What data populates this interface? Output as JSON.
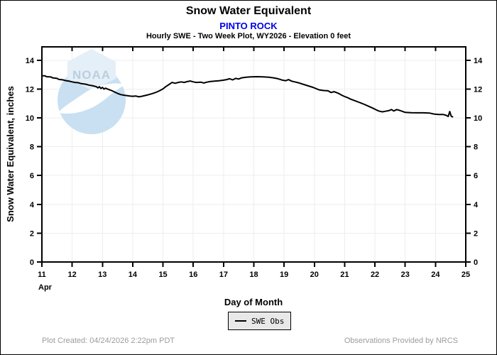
{
  "header": {
    "title": "Snow Water Equivalent",
    "station": "PINTO ROCK",
    "subtitle": "Hourly SWE - Two Week Plot, WY2026 - Elevation 0 feet"
  },
  "colors": {
    "station_text": "#0000e6",
    "line": "#000000",
    "grid": "#ededed",
    "frame": "#000000",
    "legend_bg": "#e8e8e8",
    "footer_text": "#9c9c9c",
    "logo_circle": "#c8e0f1",
    "logo_crystal": "#edf4fa",
    "logo_text": "#bccedf"
  },
  "watermark": {
    "text": "NOAA"
  },
  "footer": {
    "created": "Plot Created: 04/24/2026 2:22pm PDT",
    "provider": "Observations Provided by NRCS"
  },
  "chart_data": {
    "type": "line",
    "title": "Snow Water Equivalent",
    "station": "PINTO ROCK",
    "subtitle": "Hourly SWE - Two Week Plot, WY2026 - Elevation 0 feet",
    "xlabel": "Day of Month",
    "ylabel": "Snow Water Equivalent, inches",
    "month_label": "Apr",
    "xlim": [
      11,
      25
    ],
    "ylim": [
      0,
      14.93
    ],
    "xticks": [
      11,
      12,
      13,
      14,
      15,
      16,
      17,
      18,
      19,
      20,
      21,
      22,
      23,
      24,
      25
    ],
    "yticks": [
      0,
      2,
      4,
      6,
      8,
      10,
      12,
      14
    ],
    "grid": true,
    "legend": {
      "position": "bottom-center",
      "entries": [
        {
          "label": "SWE Obs",
          "color": "#000000"
        }
      ]
    },
    "series": [
      {
        "name": "SWE Obs",
        "points": [
          [
            11.0,
            12.92
          ],
          [
            11.1,
            12.92
          ],
          [
            11.15,
            12.86
          ],
          [
            11.3,
            12.84
          ],
          [
            11.35,
            12.78
          ],
          [
            11.5,
            12.74
          ],
          [
            11.55,
            12.68
          ],
          [
            11.7,
            12.64
          ],
          [
            11.8,
            12.58
          ],
          [
            11.9,
            12.55
          ],
          [
            12.0,
            12.5
          ],
          [
            12.1,
            12.46
          ],
          [
            12.2,
            12.44
          ],
          [
            12.3,
            12.38
          ],
          [
            12.45,
            12.34
          ],
          [
            12.55,
            12.28
          ],
          [
            12.7,
            12.22
          ],
          [
            12.8,
            12.16
          ],
          [
            12.85,
            12.08
          ],
          [
            12.9,
            12.16
          ],
          [
            12.95,
            12.04
          ],
          [
            13.0,
            12.12
          ],
          [
            13.05,
            12.0
          ],
          [
            13.1,
            12.06
          ],
          [
            13.2,
            11.98
          ],
          [
            13.3,
            11.9
          ],
          [
            13.4,
            11.8
          ],
          [
            13.5,
            11.7
          ],
          [
            13.6,
            11.62
          ],
          [
            13.7,
            11.58
          ],
          [
            13.8,
            11.55
          ],
          [
            13.9,
            11.52
          ],
          [
            14.0,
            11.5
          ],
          [
            14.1,
            11.52
          ],
          [
            14.2,
            11.46
          ],
          [
            14.3,
            11.5
          ],
          [
            14.4,
            11.55
          ],
          [
            14.5,
            11.6
          ],
          [
            14.6,
            11.66
          ],
          [
            14.7,
            11.72
          ],
          [
            14.8,
            11.8
          ],
          [
            14.9,
            11.9
          ],
          [
            15.0,
            12.02
          ],
          [
            15.1,
            12.18
          ],
          [
            15.2,
            12.32
          ],
          [
            15.3,
            12.46
          ],
          [
            15.4,
            12.4
          ],
          [
            15.5,
            12.46
          ],
          [
            15.6,
            12.5
          ],
          [
            15.7,
            12.46
          ],
          [
            15.8,
            12.52
          ],
          [
            15.9,
            12.56
          ],
          [
            16.0,
            12.5
          ],
          [
            16.1,
            12.46
          ],
          [
            16.25,
            12.48
          ],
          [
            16.35,
            12.42
          ],
          [
            16.45,
            12.48
          ],
          [
            16.55,
            12.52
          ],
          [
            16.7,
            12.55
          ],
          [
            16.85,
            12.58
          ],
          [
            17.0,
            12.62
          ],
          [
            17.1,
            12.66
          ],
          [
            17.2,
            12.72
          ],
          [
            17.3,
            12.64
          ],
          [
            17.4,
            12.74
          ],
          [
            17.5,
            12.7
          ],
          [
            17.6,
            12.78
          ],
          [
            17.75,
            12.82
          ],
          [
            17.9,
            12.85
          ],
          [
            18.1,
            12.86
          ],
          [
            18.3,
            12.85
          ],
          [
            18.5,
            12.82
          ],
          [
            18.65,
            12.78
          ],
          [
            18.8,
            12.72
          ],
          [
            18.95,
            12.62
          ],
          [
            19.05,
            12.58
          ],
          [
            19.15,
            12.66
          ],
          [
            19.25,
            12.55
          ],
          [
            19.35,
            12.5
          ],
          [
            19.5,
            12.42
          ],
          [
            19.65,
            12.32
          ],
          [
            19.8,
            12.22
          ],
          [
            19.95,
            12.12
          ],
          [
            20.05,
            12.04
          ],
          [
            20.15,
            11.95
          ],
          [
            20.3,
            11.9
          ],
          [
            20.45,
            11.88
          ],
          [
            20.55,
            11.76
          ],
          [
            20.65,
            11.82
          ],
          [
            20.8,
            11.7
          ],
          [
            20.9,
            11.58
          ],
          [
            21.0,
            11.48
          ],
          [
            21.1,
            11.4
          ],
          [
            21.2,
            11.3
          ],
          [
            21.35,
            11.18
          ],
          [
            21.5,
            11.06
          ],
          [
            21.65,
            10.94
          ],
          [
            21.8,
            10.8
          ],
          [
            21.95,
            10.66
          ],
          [
            22.05,
            10.55
          ],
          [
            22.15,
            10.46
          ],
          [
            22.25,
            10.42
          ],
          [
            22.35,
            10.46
          ],
          [
            22.45,
            10.5
          ],
          [
            22.55,
            10.58
          ],
          [
            22.62,
            10.48
          ],
          [
            22.72,
            10.58
          ],
          [
            22.82,
            10.52
          ],
          [
            22.92,
            10.44
          ],
          [
            23.0,
            10.38
          ],
          [
            23.2,
            10.36
          ],
          [
            23.4,
            10.35
          ],
          [
            23.6,
            10.35
          ],
          [
            23.8,
            10.34
          ],
          [
            23.95,
            10.27
          ],
          [
            24.1,
            10.24
          ],
          [
            24.25,
            10.24
          ],
          [
            24.35,
            10.18
          ],
          [
            24.42,
            10.1
          ],
          [
            24.47,
            10.44
          ],
          [
            24.52,
            10.12
          ],
          [
            24.58,
            10.05
          ]
        ]
      }
    ]
  }
}
